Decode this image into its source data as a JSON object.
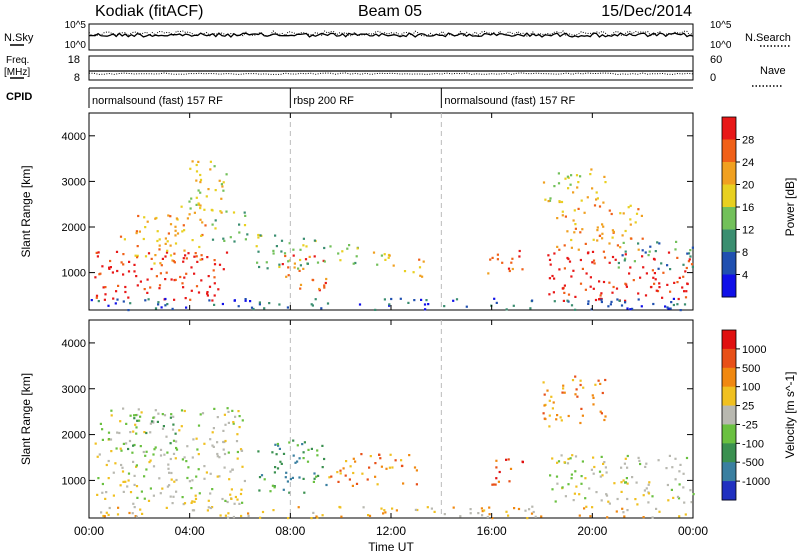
{
  "header": {
    "station": "Kodiak (fitACF)",
    "beam": "Beam 05",
    "date": "15/Dec/2014"
  },
  "top_panels": {
    "nsky_label": "N.Sky",
    "nsky_ticks": [
      "10^5",
      "10^0"
    ],
    "nsearch_label": "N.Search",
    "nsearch_ticks": [
      "10^5",
      "10^0"
    ],
    "freq_label_1": "Freq.",
    "freq_label_2": "[MHz]",
    "freq_ticks": [
      "18",
      "8"
    ],
    "nave_label": "Nave",
    "nave_ticks": [
      "60",
      "0"
    ],
    "cpid_label": "CPID",
    "cpid_segments": [
      {
        "label": "normalsound (fast) 157 RF",
        "start_hour": 0
      },
      {
        "label": "rbsp 200 RF",
        "start_hour": 8.0
      },
      {
        "label": "normalsound (fast) 157 RF",
        "start_hour": 14.0
      }
    ]
  },
  "chart_data": [
    {
      "type": "heatmap",
      "name": "Power",
      "ylabel": "Slant Range [km]",
      "xlabel": "Time UT",
      "x_ticks": [
        "00:00",
        "04:00",
        "08:00",
        "12:00",
        "16:00",
        "20:00",
        "00:00"
      ],
      "x_hours": [
        0,
        4,
        8,
        12,
        16,
        20,
        24
      ],
      "xlim": [
        0,
        24
      ],
      "y_ticks": [
        1000,
        2000,
        3000,
        4000
      ],
      "ylim": [
        180,
        4500
      ],
      "colorbar_label": "Power [dB]",
      "colorbar_ticks": [
        "4",
        "8",
        "12",
        "16",
        "20",
        "24",
        "28"
      ],
      "colorbar_colors": [
        "#1010e8",
        "#2050b0",
        "#3a8e70",
        "#72c05a",
        "#e8d020",
        "#f0a020",
        "#f06018",
        "#e81818"
      ],
      "scatter_regions": [
        {
          "t": [
            0.2,
            5.5
          ],
          "r": [
            400,
            1500
          ],
          "level": 7
        },
        {
          "t": [
            1.2,
            4.6
          ],
          "r": [
            1200,
            2300
          ],
          "level": 5
        },
        {
          "t": [
            3.5,
            5.5
          ],
          "r": [
            2300,
            3500
          ],
          "level": 4
        },
        {
          "t": [
            4.8,
            6.3
          ],
          "r": [
            1700,
            2400
          ],
          "level": 3
        },
        {
          "t": [
            6.6,
            9.2
          ],
          "r": [
            1100,
            1900
          ],
          "level": 3
        },
        {
          "t": [
            7.6,
            9.4
          ],
          "r": [
            600,
            1400
          ],
          "level": 6
        },
        {
          "t": [
            9.3,
            10.8
          ],
          "r": [
            1200,
            1700
          ],
          "level": 3
        },
        {
          "t": [
            10.8,
            12.2
          ],
          "r": [
            1100,
            1500
          ],
          "level": 4
        },
        {
          "t": [
            12.5,
            13.3
          ],
          "r": [
            900,
            1400
          ],
          "level": 5
        },
        {
          "t": [
            15.8,
            17.2
          ],
          "r": [
            900,
            1500
          ],
          "level": 6
        },
        {
          "t": [
            18.2,
            24
          ],
          "r": [
            400,
            1500
          ],
          "level": 7
        },
        {
          "t": [
            18.5,
            22
          ],
          "r": [
            1500,
            2500
          ],
          "level": 5
        },
        {
          "t": [
            18,
            20.5
          ],
          "r": [
            2500,
            3300
          ],
          "level": 4
        },
        {
          "t": [
            21,
            24
          ],
          "r": [
            1100,
            1700
          ],
          "level": 2
        },
        {
          "t": [
            0,
            24
          ],
          "r": [
            200,
            450
          ],
          "level": 1
        }
      ]
    },
    {
      "type": "heatmap",
      "name": "Velocity",
      "ylabel": "Slant Range [km]",
      "xlabel": "Time UT",
      "x_ticks": [
        "00:00",
        "04:00",
        "08:00",
        "12:00",
        "16:00",
        "20:00",
        "00:00"
      ],
      "x_hours": [
        0,
        4,
        8,
        12,
        16,
        20,
        24
      ],
      "xlim": [
        0,
        24
      ],
      "y_ticks": [
        1000,
        2000,
        3000,
        4000
      ],
      "ylim": [
        180,
        4500
      ],
      "colorbar_label": "Velocity [m s^-1]",
      "colorbar_ticks": [
        "1000",
        "500",
        "100",
        "25",
        "-25",
        "-100",
        "-500",
        "-1000"
      ],
      "colorbar_colors": [
        "#2030c0",
        "#3a7fa0",
        "#3a9050",
        "#6ac040",
        "#b8b8b0",
        "#f0c020",
        "#f08810",
        "#e85018",
        "#e01010"
      ],
      "scatter_regions": [
        {
          "t": [
            0.2,
            6.2
          ],
          "r": [
            500,
            2600
          ],
          "level": 4
        },
        {
          "t": [
            1.5,
            3.5
          ],
          "r": [
            1500,
            2500
          ],
          "level": 3
        },
        {
          "t": [
            6.6,
            9.4
          ],
          "r": [
            700,
            1900
          ],
          "level": 2
        },
        {
          "t": [
            9.5,
            13
          ],
          "r": [
            900,
            1600
          ],
          "level": 6
        },
        {
          "t": [
            15.8,
            17.2
          ],
          "r": [
            900,
            1500
          ],
          "level": 7
        },
        {
          "t": [
            18.2,
            24
          ],
          "r": [
            500,
            1600
          ],
          "level": 4
        },
        {
          "t": [
            18,
            20.5
          ],
          "r": [
            2200,
            3300
          ],
          "level": 6
        },
        {
          "t": [
            0,
            24
          ],
          "r": [
            200,
            450
          ],
          "level": 5
        }
      ]
    }
  ]
}
